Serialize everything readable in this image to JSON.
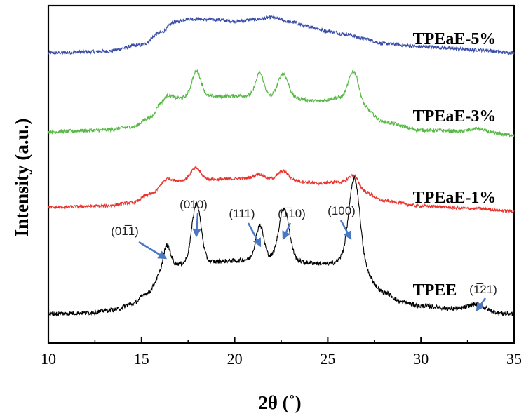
{
  "chart_data": {
    "type": "line",
    "title": "",
    "xlabel": "2θ (˚)",
    "ylabel": "Intensity (a.u.)",
    "xlim": [
      10,
      35
    ],
    "x_ticks": [
      10,
      15,
      20,
      25,
      30,
      35
    ],
    "x_tick_labels": [
      "10",
      "15",
      "20",
      "25",
      "30",
      "35"
    ],
    "y_ticks_shown": false,
    "stacked_offset": true,
    "series": [
      {
        "name": "TPEaE-5%",
        "color": "#3a4ea8",
        "offset": 3,
        "baseline": [
          [
            10,
            0.06
          ],
          [
            13,
            0.08
          ],
          [
            15,
            0.16
          ],
          [
            16,
            0.32
          ],
          [
            16.8,
            0.46
          ],
          [
            17.5,
            0.5
          ],
          [
            19,
            0.49
          ],
          [
            20,
            0.47
          ],
          [
            21,
            0.49
          ],
          [
            22,
            0.52
          ],
          [
            23,
            0.46
          ],
          [
            24,
            0.4
          ],
          [
            25,
            0.34
          ],
          [
            26,
            0.3
          ],
          [
            27,
            0.24
          ],
          [
            28,
            0.18
          ],
          [
            30,
            0.14
          ],
          [
            33,
            0.1
          ],
          [
            35,
            0.06
          ]
        ],
        "peaks": []
      },
      {
        "name": "TPEaE-3%",
        "color": "#57b845",
        "offset": 2,
        "baseline": [
          [
            10,
            0.08
          ],
          [
            13,
            0.1
          ],
          [
            14.5,
            0.14
          ],
          [
            15.5,
            0.26
          ],
          [
            16,
            0.42
          ],
          [
            17,
            0.5
          ],
          [
            19,
            0.52
          ],
          [
            21,
            0.53
          ],
          [
            23,
            0.5
          ],
          [
            24.5,
            0.46
          ],
          [
            25.5,
            0.5
          ],
          [
            27,
            0.36
          ],
          [
            28,
            0.2
          ],
          [
            30,
            0.1
          ],
          [
            33,
            0.08
          ],
          [
            35,
            0.04
          ]
        ],
        "peaks": [
          [
            16.4,
            0.08,
            0.3
          ],
          [
            17.95,
            0.32,
            0.35
          ],
          [
            21.35,
            0.28,
            0.3
          ],
          [
            22.6,
            0.3,
            0.38
          ],
          [
            26.4,
            0.42,
            0.4
          ],
          [
            33,
            0.04,
            0.5
          ]
        ]
      },
      {
        "name": "TPEaE-1%",
        "color": "#e8322c",
        "offset": 1,
        "baseline": [
          [
            10,
            0.1
          ],
          [
            13,
            0.12
          ],
          [
            14.5,
            0.17
          ],
          [
            15.5,
            0.3
          ],
          [
            16.2,
            0.44
          ],
          [
            17,
            0.5
          ],
          [
            19,
            0.52
          ],
          [
            21,
            0.54
          ],
          [
            23,
            0.5
          ],
          [
            24.5,
            0.46
          ],
          [
            25.5,
            0.48
          ],
          [
            27,
            0.32
          ],
          [
            28,
            0.2
          ],
          [
            30,
            0.12
          ],
          [
            33,
            0.08
          ],
          [
            35,
            0.04
          ]
        ],
        "peaks": [
          [
            16.4,
            0.08,
            0.3
          ],
          [
            17.9,
            0.18,
            0.38
          ],
          [
            21.3,
            0.06,
            0.35
          ],
          [
            22.6,
            0.14,
            0.4
          ],
          [
            26.4,
            0.2,
            0.4
          ]
        ]
      },
      {
        "name": "TPEE",
        "color": "#000000",
        "offset": 0,
        "baseline": [
          [
            10,
            0.04
          ],
          [
            12,
            0.05
          ],
          [
            13.5,
            0.08
          ],
          [
            14.5,
            0.14
          ],
          [
            15.3,
            0.25
          ],
          [
            16,
            0.42
          ],
          [
            17,
            0.55
          ],
          [
            18.5,
            0.57
          ],
          [
            20,
            0.58
          ],
          [
            21,
            0.6
          ],
          [
            22.5,
            0.62
          ],
          [
            24,
            0.56
          ],
          [
            25,
            0.55
          ],
          [
            26,
            0.6
          ],
          [
            27,
            0.44
          ],
          [
            28,
            0.26
          ],
          [
            29,
            0.16
          ],
          [
            30,
            0.12
          ],
          [
            32,
            0.09
          ],
          [
            35,
            0.04
          ]
        ],
        "peaks": [
          [
            16.35,
            0.28,
            0.28
          ],
          [
            17.95,
            0.6,
            0.35
          ],
          [
            21.35,
            0.34,
            0.3
          ],
          [
            22.65,
            0.5,
            0.38
          ],
          [
            26.45,
            0.88,
            0.42
          ],
          [
            33,
            0.06,
            0.6
          ]
        ]
      }
    ],
    "peak_annotations": [
      {
        "label": "(01̅1)",
        "x": 16.35,
        "series": "TPEE"
      },
      {
        "label": "(010)",
        "x": 17.95,
        "series": "TPEE"
      },
      {
        "label": "(111)",
        "x": 21.35,
        "series": "TPEE"
      },
      {
        "label": "(1̅10)",
        "x": 22.65,
        "series": "TPEE"
      },
      {
        "label": "(100)",
        "x": 26.45,
        "series": "TPEE"
      },
      {
        "label": "(1̅21)",
        "x": 33.0,
        "series": "TPEE"
      }
    ],
    "arrow_color": "#4a78c4"
  }
}
